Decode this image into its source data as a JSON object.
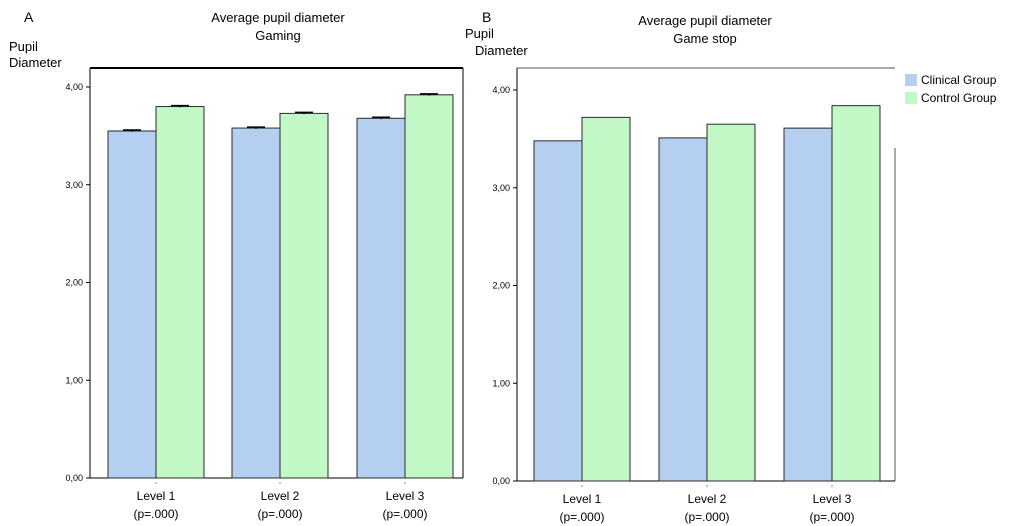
{
  "legend": {
    "items": [
      {
        "label": "Clinical Group",
        "color": "#b4cff0"
      },
      {
        "label": "Control Group",
        "color": "#c2f7c6"
      }
    ]
  },
  "chart_data": [
    {
      "panel": "A",
      "type": "bar",
      "title_lines": [
        "Average pupil diameter",
        "Gaming"
      ],
      "ylabel_lines": [
        "Pupil",
        "Diameter"
      ],
      "categories": [
        "Level 1",
        "Level 2",
        "Level 3"
      ],
      "category_notes": [
        "(p=.000)",
        "(p=.000)",
        "(p=.000)"
      ],
      "ylim": [
        0,
        4
      ],
      "yticks": [
        0,
        1,
        2,
        3,
        4
      ],
      "ytick_labels": [
        "0,00",
        "1,00",
        "2,00",
        "3,00",
        "4,00"
      ],
      "error_bars": true,
      "series": [
        {
          "name": "Clinical Group",
          "color": "#b4cff0",
          "values": [
            3.55,
            3.58,
            3.68
          ],
          "errors": [
            0.01,
            0.01,
            0.01
          ]
        },
        {
          "name": "Control Group",
          "color": "#c2f7c6",
          "values": [
            3.8,
            3.73,
            3.92
          ],
          "errors": [
            0.01,
            0.01,
            0.01
          ]
        }
      ]
    },
    {
      "panel": "B",
      "type": "bar",
      "title_lines": [
        "Average pupil diameter",
        "Game stop"
      ],
      "ylabel_lines": [
        "Pupil",
        "Diameter"
      ],
      "categories": [
        "Level 1",
        "Level 2",
        "Level 3"
      ],
      "category_notes": [
        "(p=.000)",
        "(p=.000)",
        "(p=.000)"
      ],
      "ylim": [
        0,
        4
      ],
      "yticks": [
        0,
        1,
        2,
        3,
        4
      ],
      "ytick_labels": [
        "0,00",
        "1,00",
        "2,00",
        "3,00",
        "4,00"
      ],
      "error_bars": false,
      "series": [
        {
          "name": "Clinical Group",
          "color": "#b4cff0",
          "values": [
            3.48,
            3.51,
            3.61
          ]
        },
        {
          "name": "Control Group",
          "color": "#c2f7c6",
          "values": [
            3.72,
            3.65,
            3.84
          ]
        }
      ]
    }
  ]
}
